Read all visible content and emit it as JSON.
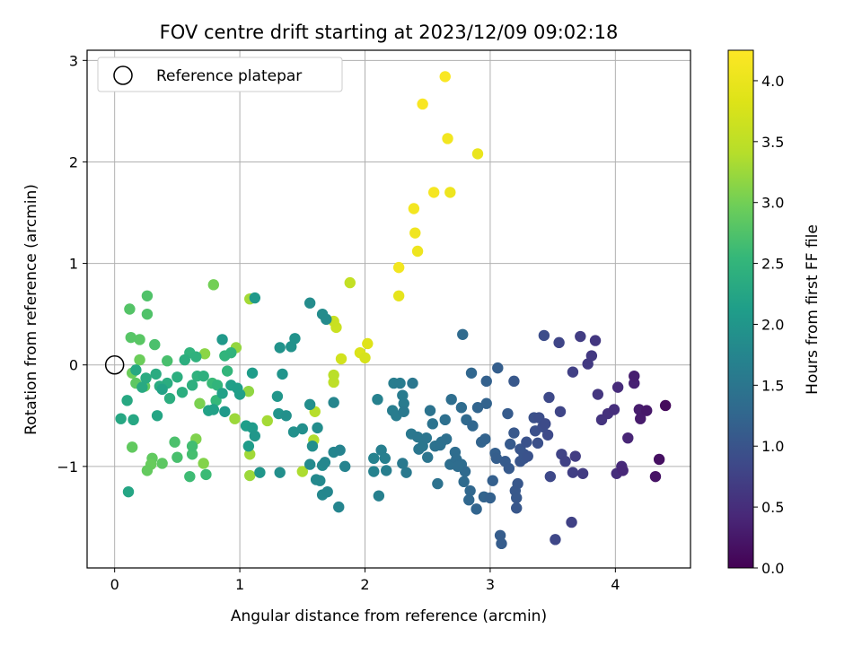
{
  "chart_data": {
    "type": "scatter",
    "title": "FOV centre drift starting at 2023/12/09 09:02:18",
    "xlabel": "Angular distance from reference (arcmin)",
    "ylabel": "Rotation from reference (arcmin)",
    "xlim": [
      -0.22,
      4.6
    ],
    "ylim": [
      -2.0,
      3.1
    ],
    "xticks": [
      0,
      1,
      2,
      3,
      4
    ],
    "yticks": [
      -1,
      0,
      1,
      2,
      3
    ],
    "grid": true,
    "legend": {
      "position": "top-left",
      "entries": [
        "Reference platepar"
      ]
    },
    "reference_point": {
      "x": 0,
      "y": 0,
      "label": "Reference platepar"
    },
    "colorbar": {
      "label": "Hours from first FF file",
      "colormap": "viridis",
      "range": [
        0.0,
        4.25
      ],
      "ticks": [
        0.0,
        0.5,
        1.0,
        1.5,
        2.0,
        2.5,
        3.0,
        3.5,
        4.0
      ],
      "tick_labels": [
        "0.0",
        "0.5",
        "1.0",
        "1.5",
        "2.0",
        "2.5",
        "3.0",
        "3.5",
        "4.0"
      ]
    },
    "points": [
      [
        2.64,
        2.84,
        4.2
      ],
      [
        2.46,
        2.57,
        4.18
      ],
      [
        2.66,
        2.23,
        4.1
      ],
      [
        2.9,
        2.08,
        4.0
      ],
      [
        2.55,
        1.7,
        4.15
      ],
      [
        2.68,
        1.7,
        4.05
      ],
      [
        2.39,
        1.54,
        4.12
      ],
      [
        2.4,
        1.3,
        4.08
      ],
      [
        2.42,
        1.12,
        4.05
      ],
      [
        2.27,
        0.96,
        4.1
      ],
      [
        2.27,
        0.68,
        3.95
      ],
      [
        2.02,
        0.21,
        3.85
      ],
      [
        1.96,
        0.12,
        3.8
      ],
      [
        2.0,
        0.07,
        3.75
      ],
      [
        1.81,
        0.06,
        3.7
      ],
      [
        1.77,
        0.37,
        3.62
      ],
      [
        1.75,
        0.43,
        3.6
      ],
      [
        1.88,
        0.81,
        3.55
      ],
      [
        1.75,
        -0.17,
        3.5
      ],
      [
        1.75,
        -0.1,
        3.45
      ],
      [
        1.6,
        -0.46,
        3.42
      ],
      [
        1.59,
        -0.74,
        3.38
      ],
      [
        1.5,
        -1.05,
        3.35
      ],
      [
        1.22,
        -0.55,
        3.3
      ],
      [
        1.08,
        0.65,
        3.3
      ],
      [
        1.08,
        -0.88,
        3.28
      ],
      [
        1.08,
        -1.09,
        3.25
      ],
      [
        0.96,
        -0.53,
        3.25
      ],
      [
        0.97,
        0.17,
        3.2
      ],
      [
        1.07,
        -0.26,
        3.18
      ],
      [
        0.72,
        0.11,
        3.15
      ],
      [
        0.71,
        -0.97,
        3.1
      ],
      [
        0.65,
        -0.73,
        3.08
      ],
      [
        0.68,
        -0.38,
        3.05
      ],
      [
        0.79,
        0.79,
        3.0
      ],
      [
        0.14,
        -0.08,
        2.95
      ],
      [
        0.2,
        0.05,
        2.95
      ],
      [
        0.24,
        -0.21,
        2.9
      ],
      [
        0.3,
        -0.92,
        2.88
      ],
      [
        0.38,
        -0.97,
        2.85
      ],
      [
        0.29,
        -0.98,
        2.92
      ],
      [
        0.26,
        -1.04,
        2.9
      ],
      [
        0.14,
        -0.81,
        2.88
      ],
      [
        0.17,
        -0.18,
        2.85
      ],
      [
        0.2,
        0.25,
        2.82
      ],
      [
        0.13,
        0.27,
        2.8
      ],
      [
        0.12,
        0.55,
        2.78
      ],
      [
        0.26,
        0.5,
        2.75
      ],
      [
        0.26,
        0.68,
        2.75
      ],
      [
        0.32,
        0.2,
        2.72
      ],
      [
        0.42,
        0.04,
        2.7
      ],
      [
        0.5,
        -0.91,
        2.7
      ],
      [
        0.48,
        -0.76,
        2.72
      ],
      [
        0.62,
        -0.88,
        2.68
      ],
      [
        0.62,
        -0.8,
        2.65
      ],
      [
        0.6,
        -1.1,
        2.62
      ],
      [
        0.73,
        -1.08,
        2.6
      ],
      [
        0.78,
        -0.18,
        2.58
      ],
      [
        0.81,
        -0.35,
        2.55
      ],
      [
        0.9,
        -0.06,
        2.52
      ],
      [
        0.82,
        -0.2,
        2.5
      ],
      [
        0.88,
        0.09,
        2.5
      ],
      [
        0.93,
        0.12,
        2.48
      ],
      [
        0.6,
        0.12,
        2.48
      ],
      [
        0.65,
        0.08,
        2.45
      ],
      [
        0.66,
        -0.11,
        2.45
      ],
      [
        0.71,
        -0.11,
        2.42
      ],
      [
        0.62,
        -0.2,
        2.42
      ],
      [
        0.56,
        0.05,
        2.4
      ],
      [
        0.5,
        -0.12,
        2.4
      ],
      [
        0.54,
        -0.27,
        2.38
      ],
      [
        0.44,
        -0.33,
        2.38
      ],
      [
        0.42,
        -0.18,
        2.36
      ],
      [
        0.36,
        -0.21,
        2.35
      ],
      [
        0.33,
        -0.09,
        2.35
      ],
      [
        0.25,
        -0.13,
        2.34
      ],
      [
        0.22,
        -0.22,
        2.32
      ],
      [
        0.17,
        -0.05,
        2.3
      ],
      [
        0.1,
        -0.35,
        2.3
      ],
      [
        0.15,
        -0.54,
        2.28
      ],
      [
        0.05,
        -0.53,
        2.28
      ],
      [
        0.11,
        -1.25,
        2.25
      ],
      [
        0.34,
        -0.5,
        2.25
      ],
      [
        0.38,
        -0.24,
        2.2
      ],
      [
        0.75,
        -0.45,
        2.2
      ],
      [
        0.79,
        -0.44,
        2.18
      ],
      [
        0.86,
        -0.28,
        2.18
      ],
      [
        0.93,
        -0.2,
        2.16
      ],
      [
        0.98,
        -0.23,
        2.15
      ],
      [
        1.0,
        -0.29,
        2.14
      ],
      [
        1.05,
        -0.6,
        2.12
      ],
      [
        1.07,
        -0.8,
        2.1
      ],
      [
        1.1,
        -0.08,
        2.1
      ],
      [
        1.1,
        -0.62,
        2.08
      ],
      [
        0.88,
        -0.46,
        2.06
      ],
      [
        0.86,
        0.25,
        2.05
      ],
      [
        1.12,
        0.66,
        2.05
      ],
      [
        1.12,
        -0.7,
        2.02
      ],
      [
        1.16,
        -1.06,
        2.0
      ],
      [
        1.3,
        -0.31,
        2.0
      ],
      [
        1.31,
        -0.48,
        1.98
      ],
      [
        1.34,
        -0.09,
        1.98
      ],
      [
        1.32,
        0.17,
        1.96
      ],
      [
        1.41,
        0.18,
        1.95
      ],
      [
        1.44,
        0.26,
        1.94
      ],
      [
        1.43,
        -0.66,
        1.92
      ],
      [
        1.37,
        -0.5,
        1.92
      ],
      [
        1.32,
        -1.06,
        1.9
      ],
      [
        1.5,
        -0.63,
        1.9
      ],
      [
        1.56,
        -0.39,
        1.88
      ],
      [
        1.58,
        -0.8,
        1.88
      ],
      [
        1.62,
        -0.62,
        1.86
      ],
      [
        1.56,
        0.61,
        1.85
      ],
      [
        1.66,
        0.5,
        1.85
      ],
      [
        1.69,
        0.45,
        1.84
      ],
      [
        1.66,
        -0.99,
        1.82
      ],
      [
        1.56,
        -0.98,
        1.82
      ],
      [
        1.61,
        -1.13,
        1.8
      ],
      [
        1.64,
        -1.14,
        1.8
      ],
      [
        1.66,
        -1.28,
        1.78
      ],
      [
        1.68,
        -0.96,
        1.78
      ],
      [
        1.7,
        -1.25,
        1.76
      ],
      [
        1.75,
        -0.86,
        1.75
      ],
      [
        1.75,
        -0.37,
        1.75
      ],
      [
        1.79,
        -1.4,
        1.74
      ],
      [
        1.8,
        -0.84,
        1.72
      ],
      [
        1.84,
        -1.0,
        1.72
      ],
      [
        2.07,
        -1.05,
        1.7
      ],
      [
        2.07,
        -0.92,
        1.7
      ],
      [
        2.1,
        -0.34,
        1.68
      ],
      [
        2.11,
        -1.29,
        1.66
      ],
      [
        2.13,
        -0.84,
        1.65
      ],
      [
        2.16,
        -0.92,
        1.65
      ],
      [
        2.17,
        -1.04,
        1.64
      ],
      [
        2.22,
        -0.45,
        1.62
      ],
      [
        2.23,
        -0.18,
        1.62
      ],
      [
        2.25,
        -0.5,
        1.6
      ],
      [
        2.28,
        -0.18,
        1.6
      ],
      [
        2.3,
        -0.3,
        1.58
      ],
      [
        2.31,
        -0.38,
        1.58
      ],
      [
        2.31,
        -0.46,
        1.56
      ],
      [
        2.3,
        -0.97,
        1.55
      ],
      [
        2.33,
        -1.06,
        1.55
      ],
      [
        2.37,
        -0.68,
        1.54
      ],
      [
        2.38,
        -0.18,
        1.52
      ],
      [
        2.42,
        -0.71,
        1.52
      ],
      [
        2.43,
        -0.83,
        1.5
      ],
      [
        2.46,
        -0.8,
        1.5
      ],
      [
        2.49,
        -0.72,
        1.48
      ],
      [
        2.5,
        -0.91,
        1.48
      ],
      [
        2.52,
        -0.45,
        1.46
      ],
      [
        2.54,
        -0.58,
        1.45
      ],
      [
        2.56,
        -0.8,
        1.44
      ],
      [
        2.58,
        -1.17,
        1.44
      ],
      [
        2.6,
        -0.79,
        1.42
      ],
      [
        2.61,
        -0.76,
        1.42
      ],
      [
        2.64,
        -0.54,
        1.4
      ],
      [
        2.65,
        -0.73,
        1.4
      ],
      [
        2.68,
        -0.98,
        1.38
      ],
      [
        2.69,
        -0.34,
        1.38
      ],
      [
        2.72,
        -0.86,
        1.36
      ],
      [
        2.73,
        -0.93,
        1.36
      ],
      [
        2.75,
        -0.99,
        1.35
      ],
      [
        2.77,
        -0.98,
        1.35
      ],
      [
        2.77,
        -0.42,
        1.34
      ],
      [
        2.78,
        0.3,
        1.32
      ],
      [
        2.79,
        -1.15,
        1.32
      ],
      [
        2.8,
        -1.05,
        1.3
      ],
      [
        2.81,
        -0.54,
        1.3
      ],
      [
        2.83,
        -1.33,
        1.28
      ],
      [
        2.84,
        -1.24,
        1.28
      ],
      [
        2.85,
        -0.08,
        1.26
      ],
      [
        2.86,
        -0.6,
        1.26
      ],
      [
        2.89,
        -1.42,
        1.24
      ],
      [
        2.9,
        -0.42,
        1.24
      ],
      [
        2.93,
        -0.76,
        1.22
      ],
      [
        2.95,
        -1.3,
        1.22
      ],
      [
        2.96,
        -0.73,
        1.2
      ],
      [
        2.97,
        -0.38,
        1.2
      ],
      [
        2.97,
        -0.16,
        1.18
      ],
      [
        3.0,
        -1.31,
        1.18
      ],
      [
        3.02,
        -1.14,
        1.16
      ],
      [
        3.04,
        -0.87,
        1.16
      ],
      [
        3.05,
        -0.92,
        1.14
      ],
      [
        3.06,
        -0.03,
        1.14
      ],
      [
        3.08,
        -1.68,
        1.12
      ],
      [
        3.09,
        -1.76,
        1.12
      ],
      [
        3.12,
        -0.95,
        1.1
      ],
      [
        3.14,
        -0.48,
        1.1
      ],
      [
        3.15,
        -1.02,
        1.08
      ],
      [
        3.16,
        -0.78,
        1.08
      ],
      [
        3.19,
        -0.67,
        1.06
      ],
      [
        3.19,
        -0.16,
        1.06
      ],
      [
        3.2,
        -1.24,
        1.05
      ],
      [
        3.21,
        -1.31,
        1.05
      ],
      [
        3.21,
        -1.41,
        1.04
      ],
      [
        3.22,
        -1.17,
        1.04
      ],
      [
        3.24,
        -0.83,
        1.02
      ],
      [
        3.24,
        -0.95,
        1.02
      ],
      [
        3.27,
        -0.92,
        1.0
      ],
      [
        3.27,
        -0.88,
        1.0
      ],
      [
        3.29,
        -0.76,
        0.98
      ],
      [
        3.3,
        -0.9,
        0.98
      ],
      [
        3.35,
        -0.52,
        0.96
      ],
      [
        3.36,
        -0.65,
        0.95
      ],
      [
        3.38,
        -0.77,
        0.94
      ],
      [
        3.39,
        -0.52,
        0.92
      ],
      [
        3.42,
        -0.61,
        0.9
      ],
      [
        3.43,
        0.29,
        0.9
      ],
      [
        3.44,
        -0.58,
        0.88
      ],
      [
        3.46,
        -0.69,
        0.86
      ],
      [
        3.47,
        -0.32,
        0.85
      ],
      [
        3.48,
        -1.1,
        0.84
      ],
      [
        3.52,
        -1.72,
        0.82
      ],
      [
        3.55,
        0.22,
        0.8
      ],
      [
        3.56,
        -0.46,
        0.8
      ],
      [
        3.57,
        -0.88,
        0.78
      ],
      [
        3.6,
        -0.95,
        0.76
      ],
      [
        3.65,
        -1.55,
        0.75
      ],
      [
        3.66,
        -0.07,
        0.74
      ],
      [
        3.66,
        -1.06,
        0.72
      ],
      [
        3.68,
        -0.9,
        0.7
      ],
      [
        3.72,
        0.28,
        0.7
      ],
      [
        3.74,
        -1.07,
        0.68
      ],
      [
        3.78,
        0.01,
        0.66
      ],
      [
        3.81,
        0.09,
        0.65
      ],
      [
        3.84,
        0.24,
        0.62
      ],
      [
        3.86,
        -0.29,
        0.6
      ],
      [
        3.89,
        -0.54,
        0.58
      ],
      [
        3.94,
        -0.48,
        0.55
      ],
      [
        3.99,
        -0.44,
        0.52
      ],
      [
        4.01,
        -1.07,
        0.5
      ],
      [
        4.02,
        -0.22,
        0.48
      ],
      [
        4.05,
        -1.0,
        0.45
      ],
      [
        4.06,
        -1.04,
        0.42
      ],
      [
        4.1,
        -0.72,
        0.4
      ],
      [
        4.15,
        -0.18,
        0.35
      ],
      [
        4.15,
        -0.11,
        0.32
      ],
      [
        4.19,
        -0.44,
        0.3
      ],
      [
        4.2,
        -0.53,
        0.28
      ],
      [
        4.25,
        -0.45,
        0.25
      ],
      [
        4.32,
        -1.1,
        0.2
      ],
      [
        4.35,
        -0.93,
        0.15
      ],
      [
        4.4,
        -0.4,
        0.1
      ],
      [
        2.74,
        -1.0,
        1.36
      ]
    ]
  }
}
